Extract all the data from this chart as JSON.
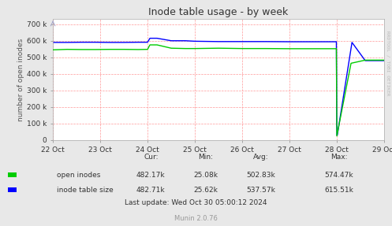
{
  "title": "Inode table usage - by week",
  "ylabel": "number of open inodes",
  "fig_bg_color": "#e8e8e8",
  "plot_bg_color": "#ffffff",
  "grid_color": "#ff9999",
  "border_color": "#aaaaaa",
  "x_labels": [
    "22 Oct",
    "23 Oct",
    "24 Oct",
    "25 Oct",
    "26 Oct",
    "27 Oct",
    "28 Oct",
    "29 Oct"
  ],
  "x_ticks": [
    0,
    1,
    2,
    3,
    4,
    5,
    6,
    7
  ],
  "yticks": [
    0,
    100000,
    200000,
    300000,
    400000,
    500000,
    600000,
    700000
  ],
  "ytick_labels": [
    "0",
    "100 k",
    "200 k",
    "300 k",
    "400 k",
    "500 k",
    "600 k",
    "700 k"
  ],
  "ylim": [
    0,
    730000
  ],
  "green_line_color": "#00cc00",
  "blue_line_color": "#0000ff",
  "legend_labels": [
    "open inodes",
    "inode table size"
  ],
  "footer_text": "Last update: Wed Oct 30 05:00:12 2024",
  "munin_text": "Munin 2.0.76",
  "cur_label": "Cur:",
  "min_label": "Min:",
  "avg_label": "Avg:",
  "max_label": "Max:",
  "green_cur": "482.17k",
  "green_min": "25.08k",
  "green_avg": "502.83k",
  "green_max": "574.47k",
  "blue_cur": "482.71k",
  "blue_min": "25.62k",
  "blue_avg": "537.57k",
  "blue_max": "615.51k",
  "rrdtool_text": "RRDTOOL / TOBI OETIKER",
  "green_data_x": [
    0.0,
    0.3,
    0.6,
    0.9,
    1.2,
    1.5,
    1.8,
    2.0,
    2.05,
    2.2,
    2.5,
    2.8,
    3.0,
    3.5,
    4.0,
    4.5,
    5.0,
    5.5,
    5.8,
    5.99,
    6.0,
    6.3,
    6.6,
    6.65,
    7.0
  ],
  "green_data_y": [
    545000,
    548000,
    547000,
    547000,
    548000,
    548000,
    547000,
    548000,
    575000,
    575000,
    555000,
    553000,
    553000,
    555000,
    553000,
    553000,
    552000,
    552000,
    552000,
    552000,
    25000,
    464000,
    483000,
    483000,
    483000
  ],
  "blue_data_x": [
    0.0,
    0.3,
    0.6,
    0.9,
    1.2,
    1.5,
    1.8,
    2.0,
    2.05,
    2.2,
    2.5,
    2.8,
    3.0,
    3.5,
    4.0,
    4.5,
    5.0,
    5.5,
    5.8,
    5.99,
    6.0,
    6.01,
    6.32,
    6.6,
    6.65,
    7.0
  ],
  "blue_data_y": [
    590000,
    590000,
    591000,
    591000,
    590000,
    590000,
    591000,
    591000,
    615000,
    615000,
    600000,
    600000,
    597000,
    595000,
    595000,
    595000,
    594000,
    594000,
    594000,
    594000,
    30000,
    30000,
    590000,
    480000,
    480000,
    480000
  ]
}
